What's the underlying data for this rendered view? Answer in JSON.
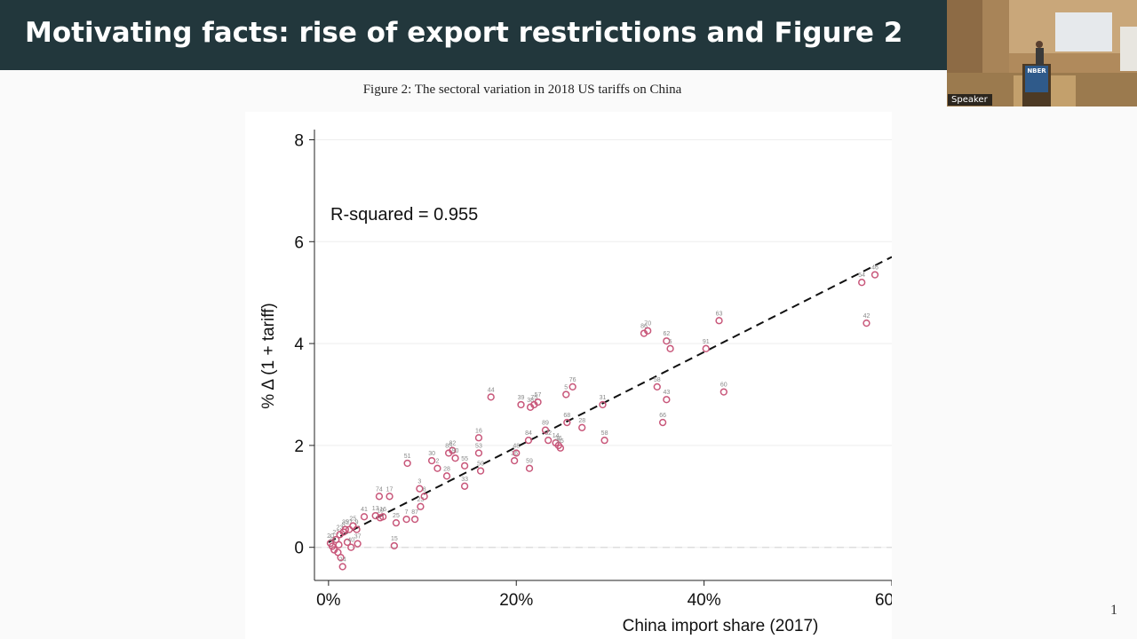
{
  "slide": {
    "title": "Motivating facts: rise of export restrictions and Figure 2",
    "caption": "Figure 2: The sectoral variation in 2018 US tariffs on China",
    "page_number": "1"
  },
  "video": {
    "speaker_label": "Speaker",
    "podium_text": "NBER"
  },
  "colors": {
    "header_bg": "#22373c",
    "marker": "#c8577a",
    "fit_line": "#111111"
  },
  "chart_data": {
    "type": "scatter",
    "title": "",
    "xlabel": "China import share (2017)",
    "ylabel": "% Δ (1 + tariff)",
    "annotation": "R-squared = 0.955",
    "xlim": [
      -1.5,
      60
    ],
    "ylim": [
      -0.65,
      8.2
    ],
    "xticks": [
      0,
      20,
      40,
      60
    ],
    "xtick_labels": [
      "0%",
      "20%",
      "40%",
      "60%"
    ],
    "yticks": [
      0,
      2,
      4,
      6,
      8
    ],
    "ytick_labels": [
      "0",
      "2",
      "4",
      "6",
      "8"
    ],
    "grid": true,
    "fit_line": {
      "x0": 0,
      "y0": 0.1,
      "x1": 60,
      "y1": 5.7
    },
    "points": [
      {
        "x": 0.2,
        "y": 0.08,
        "label": "20"
      },
      {
        "x": 0.4,
        "y": 0.02,
        "label": "21"
      },
      {
        "x": 0.6,
        "y": -0.05,
        "label": ""
      },
      {
        "x": 0.8,
        "y": 0.15,
        "label": "22"
      },
      {
        "x": 1.0,
        "y": -0.1,
        "label": ""
      },
      {
        "x": 1.2,
        "y": 0.25,
        "label": "23"
      },
      {
        "x": 1.1,
        "y": 0.05,
        "label": ""
      },
      {
        "x": 1.3,
        "y": -0.2,
        "label": ""
      },
      {
        "x": 1.5,
        "y": -0.38,
        "label": "24"
      },
      {
        "x": 1.6,
        "y": 0.3,
        "label": "5"
      },
      {
        "x": 1.8,
        "y": 0.35,
        "label": "35"
      },
      {
        "x": 2.0,
        "y": 0.1,
        "label": ""
      },
      {
        "x": 2.2,
        "y": 0.35,
        "label": "27"
      },
      {
        "x": 2.4,
        "y": 0.0,
        "label": "40"
      },
      {
        "x": 2.6,
        "y": 0.42,
        "label": "25"
      },
      {
        "x": 3.0,
        "y": 0.35,
        "label": "9"
      },
      {
        "x": 3.1,
        "y": 0.07,
        "label": "37"
      },
      {
        "x": 3.8,
        "y": 0.6,
        "label": "41"
      },
      {
        "x": 5.0,
        "y": 0.62,
        "label": "13"
      },
      {
        "x": 5.5,
        "y": 0.58,
        "label": "10"
      },
      {
        "x": 5.8,
        "y": 0.6,
        "label": "16"
      },
      {
        "x": 5.4,
        "y": 1.0,
        "label": "74"
      },
      {
        "x": 6.5,
        "y": 1.0,
        "label": "17"
      },
      {
        "x": 7.0,
        "y": 0.03,
        "label": "15"
      },
      {
        "x": 7.2,
        "y": 0.48,
        "label": "25"
      },
      {
        "x": 8.3,
        "y": 0.55,
        "label": "7"
      },
      {
        "x": 9.2,
        "y": 0.55,
        "label": "87"
      },
      {
        "x": 8.4,
        "y": 1.65,
        "label": "51"
      },
      {
        "x": 9.8,
        "y": 0.8,
        "label": "23"
      },
      {
        "x": 9.7,
        "y": 1.15,
        "label": "3"
      },
      {
        "x": 10.2,
        "y": 1.0,
        "label": "8"
      },
      {
        "x": 11.0,
        "y": 1.7,
        "label": "30"
      },
      {
        "x": 11.6,
        "y": 1.55,
        "label": "2"
      },
      {
        "x": 12.6,
        "y": 1.4,
        "label": "28"
      },
      {
        "x": 12.8,
        "y": 1.85,
        "label": "85"
      },
      {
        "x": 13.2,
        "y": 1.9,
        "label": "82"
      },
      {
        "x": 13.5,
        "y": 1.75,
        "label": "90"
      },
      {
        "x": 14.5,
        "y": 1.6,
        "label": "55"
      },
      {
        "x": 14.5,
        "y": 1.2,
        "label": "33"
      },
      {
        "x": 16.0,
        "y": 2.15,
        "label": "16"
      },
      {
        "x": 16.0,
        "y": 1.85,
        "label": "53"
      },
      {
        "x": 16.2,
        "y": 1.5,
        "label": "50"
      },
      {
        "x": 17.3,
        "y": 2.95,
        "label": "44"
      },
      {
        "x": 19.8,
        "y": 1.7,
        "label": "36"
      },
      {
        "x": 20.0,
        "y": 1.85,
        "label": "48"
      },
      {
        "x": 20.5,
        "y": 2.8,
        "label": "39"
      },
      {
        "x": 21.3,
        "y": 2.1,
        "label": "84"
      },
      {
        "x": 21.4,
        "y": 1.55,
        "label": "59"
      },
      {
        "x": 21.5,
        "y": 2.75,
        "label": "38"
      },
      {
        "x": 21.9,
        "y": 2.8,
        "label": "75"
      },
      {
        "x": 22.3,
        "y": 2.85,
        "label": "57"
      },
      {
        "x": 23.1,
        "y": 2.3,
        "label": "89"
      },
      {
        "x": 23.4,
        "y": 2.1,
        "label": "32"
      },
      {
        "x": 24.2,
        "y": 2.05,
        "label": "14"
      },
      {
        "x": 24.5,
        "y": 2.0,
        "label": "36"
      },
      {
        "x": 24.7,
        "y": 1.95,
        "label": "55"
      },
      {
        "x": 25.3,
        "y": 3.0,
        "label": "5"
      },
      {
        "x": 25.4,
        "y": 2.45,
        "label": "68"
      },
      {
        "x": 26.0,
        "y": 3.15,
        "label": "76"
      },
      {
        "x": 27.0,
        "y": 2.35,
        "label": "28"
      },
      {
        "x": 29.2,
        "y": 2.8,
        "label": "31"
      },
      {
        "x": 29.4,
        "y": 2.1,
        "label": "58"
      },
      {
        "x": 33.6,
        "y": 4.2,
        "label": "86"
      },
      {
        "x": 34.0,
        "y": 4.25,
        "label": "70"
      },
      {
        "x": 35.0,
        "y": 3.15,
        "label": "58"
      },
      {
        "x": 35.6,
        "y": 2.45,
        "label": "66"
      },
      {
        "x": 36.0,
        "y": 4.05,
        "label": "62"
      },
      {
        "x": 36.4,
        "y": 3.9,
        "label": "5"
      },
      {
        "x": 36.0,
        "y": 2.9,
        "label": "43"
      },
      {
        "x": 40.2,
        "y": 3.9,
        "label": "91"
      },
      {
        "x": 41.6,
        "y": 4.45,
        "label": "63"
      },
      {
        "x": 42.1,
        "y": 3.05,
        "label": "60"
      },
      {
        "x": 56.8,
        "y": 5.2,
        "label": "54"
      },
      {
        "x": 57.3,
        "y": 4.4,
        "label": "42"
      },
      {
        "x": 58.2,
        "y": 5.35,
        "label": "46"
      }
    ]
  }
}
